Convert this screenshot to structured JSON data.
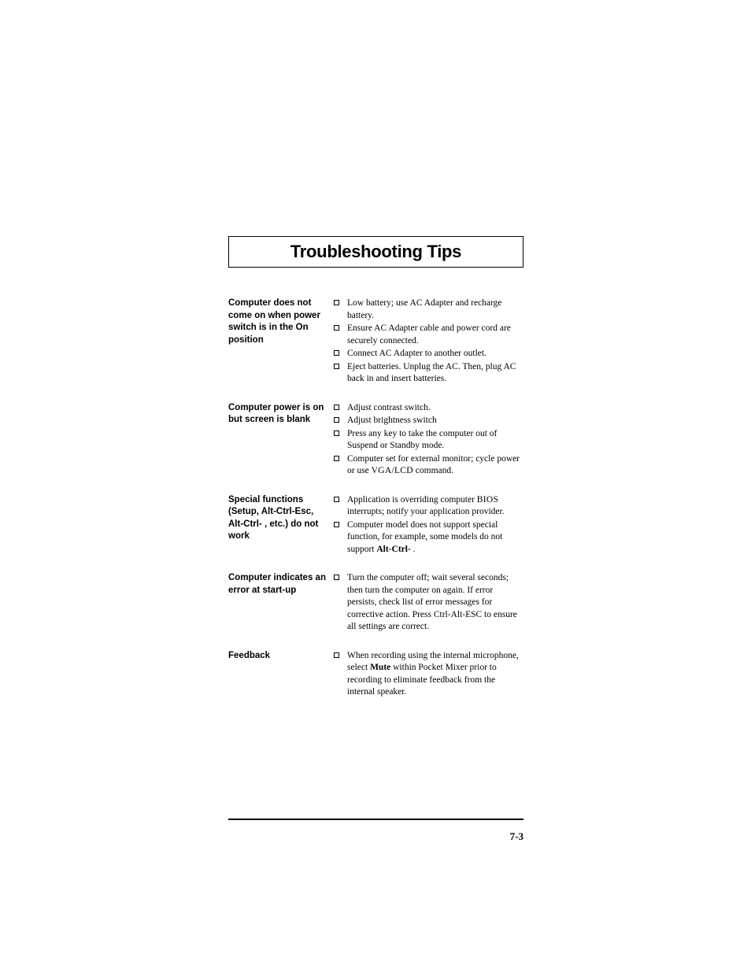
{
  "title": "Troubleshooting Tips",
  "page_number": "7-3",
  "colors": {
    "text": "#000000",
    "background": "#ffffff",
    "border": "#000000"
  },
  "typography": {
    "title_font": "Arial Black",
    "title_size_pt": 16,
    "label_font": "Arial",
    "label_size_pt": 8.5,
    "body_font": "Bookman Old Style",
    "body_size_pt": 8.5
  },
  "sections": [
    {
      "label": "Computer does not come on when power switch is in the On position",
      "items": [
        "Low battery; use AC Adapter and recharge battery.",
        "Ensure AC Adapter cable and power cord are securely connected.",
        "Connect AC Adapter to another outlet.",
        "Eject batteries.  Unplug the AC. Then, plug AC back in and insert batteries."
      ]
    },
    {
      "label": "Computer power is on but screen is blank",
      "items": [
        "Adjust contrast switch.",
        "Adjust brightness switch",
        "Press any key to take the computer out of Suspend or Standby mode.",
        "Computer set for external monitor; cycle power or use <span class=\"smallcaps\">VGA/LCD</span> command."
      ]
    },
    {
      "label": "Special functions (Setup, Alt-Ctrl-Esc, Alt-Ctrl-  , etc.) do not work",
      "items": [
        "Application is overriding computer <span class=\"smallcaps\">BIOS</span> interrupts; notify your application provider.",
        "Computer model does not support special function, for example, some models do not support <b>Alt-Ctrl-</b>  ."
      ]
    },
    {
      "label": "Computer indicates an error at start-up",
      "items": [
        "Turn the computer off; wait several seconds; then turn the computer on again. If error persists, check list of error messages for corrective action. Press Ctrl-Alt-ESC to ensure all settings are correct."
      ]
    },
    {
      "label": "Feedback",
      "items": [
        "When recording using the internal microphone, select <b>Mute</b> within Pocket Mixer prior to recording to eliminate feedback from the internal speaker."
      ]
    }
  ]
}
